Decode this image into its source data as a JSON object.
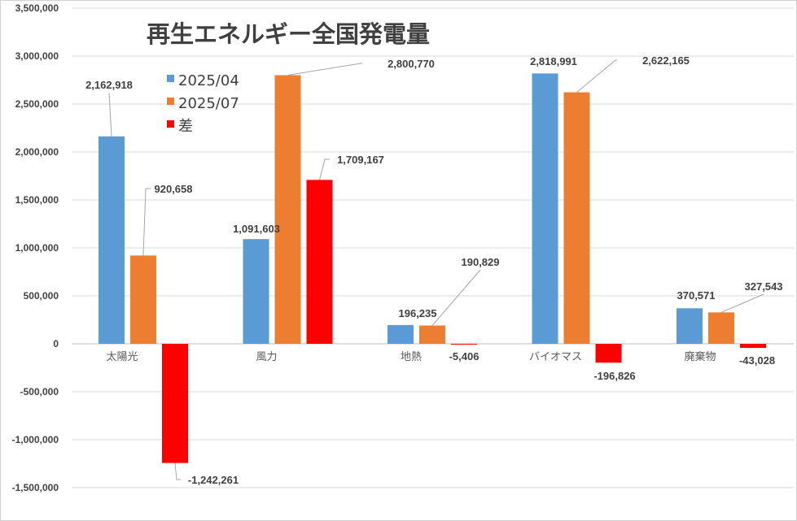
{
  "chart_data": {
    "type": "bar",
    "title": "再生エネルギー全国発電量",
    "categories": [
      "太陽光",
      "風力",
      "地熱",
      "バイオマス",
      "廃棄物"
    ],
    "series": [
      {
        "name": "2025/04",
        "color": "#5B9BD5",
        "values": [
          2162918,
          1091603,
          196235,
          2818991,
          370571
        ],
        "labels": [
          "2,162,918",
          "1,091,603",
          "196,235",
          "2,818,991",
          "370,571"
        ]
      },
      {
        "name": "2025/07",
        "color": "#ED7D31",
        "values": [
          920658,
          2800770,
          190829,
          2622165,
          327543
        ],
        "labels": [
          "920,658",
          "2,800,770",
          "190,829",
          "2,622,165",
          "327,543"
        ]
      },
      {
        "name": "差",
        "color": "#FF0000",
        "values": [
          -1242261,
          1709167,
          -5406,
          -196826,
          -43028
        ],
        "labels": [
          "-1,242,261",
          "1,709,167",
          "-5,406",
          "-196,826",
          "-43,028"
        ]
      }
    ],
    "ylim": [
      -1500000,
      3500000
    ],
    "yticks": [
      3500000,
      3000000,
      2500000,
      2000000,
      1500000,
      1000000,
      500000,
      0,
      -500000,
      -1000000,
      -1500000
    ],
    "ytick_labels": [
      "3,500,000",
      "3,000,000",
      "2,500,000",
      "2,000,000",
      "1,500,000",
      "1,000,000",
      "500,000",
      "0",
      "-500,000",
      "-1,000,000",
      "-1,500,000"
    ],
    "grid": true,
    "legend": "top-left"
  }
}
